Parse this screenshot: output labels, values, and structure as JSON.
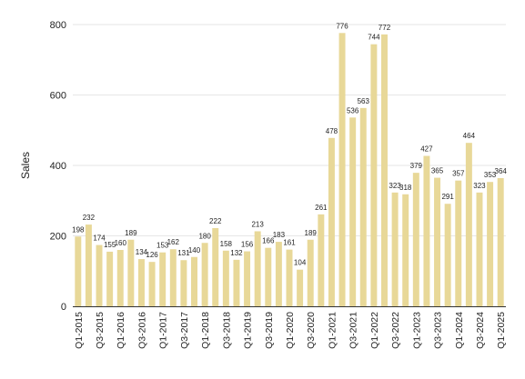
{
  "chart_data": {
    "type": "bar",
    "title": "",
    "xlabel": "",
    "ylabel": "Sales",
    "ylim": [
      0,
      800
    ],
    "yticks": [
      0,
      200,
      400,
      600,
      800
    ],
    "grid": true,
    "bar_color": "#e8d898",
    "categories": [
      "Q1-2015",
      "Q2-2015",
      "Q3-2015",
      "Q4-2015",
      "Q1-2016",
      "Q2-2016",
      "Q3-2016",
      "Q4-2016",
      "Q1-2017",
      "Q2-2017",
      "Q3-2017",
      "Q4-2017",
      "Q1-2018",
      "Q2-2018",
      "Q3-2018",
      "Q4-2018",
      "Q1-2019",
      "Q2-2019",
      "Q3-2019",
      "Q4-2019",
      "Q1-2020",
      "Q2-2020",
      "Q3-2020",
      "Q4-2020",
      "Q1-2021",
      "Q2-2021",
      "Q3-2021",
      "Q4-2021",
      "Q1-2022",
      "Q2-2022",
      "Q3-2022",
      "Q4-2022",
      "Q1-2023",
      "Q2-2023",
      "Q3-2023",
      "Q4-2023",
      "Q1-2024",
      "Q2-2024",
      "Q3-2024",
      "Q4-2024",
      "Q1-2025"
    ],
    "visible_x_labels": [
      "Q1-2015",
      "Q3-2015",
      "Q1-2016",
      "Q3-2016",
      "Q1-2017",
      "Q3-2017",
      "Q1-2018",
      "Q3-2018",
      "Q1-2019",
      "Q3-2019",
      "Q1-2020",
      "Q3-2020",
      "Q1-2021",
      "Q3-2021",
      "Q1-2022",
      "Q3-2022",
      "Q1-2023",
      "Q3-2023",
      "Q1-2024",
      "Q3-2024",
      "Q1-2025"
    ],
    "values": [
      198,
      232,
      174,
      155,
      160,
      189,
      134,
      126,
      153,
      162,
      131,
      140,
      180,
      222,
      158,
      132,
      156,
      213,
      166,
      183,
      161,
      104,
      189,
      261,
      478,
      776,
      536,
      563,
      744,
      772,
      323,
      318,
      379,
      427,
      365,
      291,
      357,
      464,
      323,
      353,
      364
    ],
    "value_labels": [
      "198",
      "232",
      "174",
      "155",
      "160",
      "189",
      "134",
      "126",
      "153",
      "162",
      "131",
      "140",
      "180",
      "222",
      "158",
      "132",
      "156",
      "213",
      "166",
      "183",
      "161",
      "104",
      "189",
      "261",
      "478",
      "776",
      "536",
      "563",
      "744",
      "772",
      "323",
      "318",
      "379",
      "427",
      "365",
      "291",
      "357",
      "464",
      "323",
      "353",
      "364"
    ]
  }
}
